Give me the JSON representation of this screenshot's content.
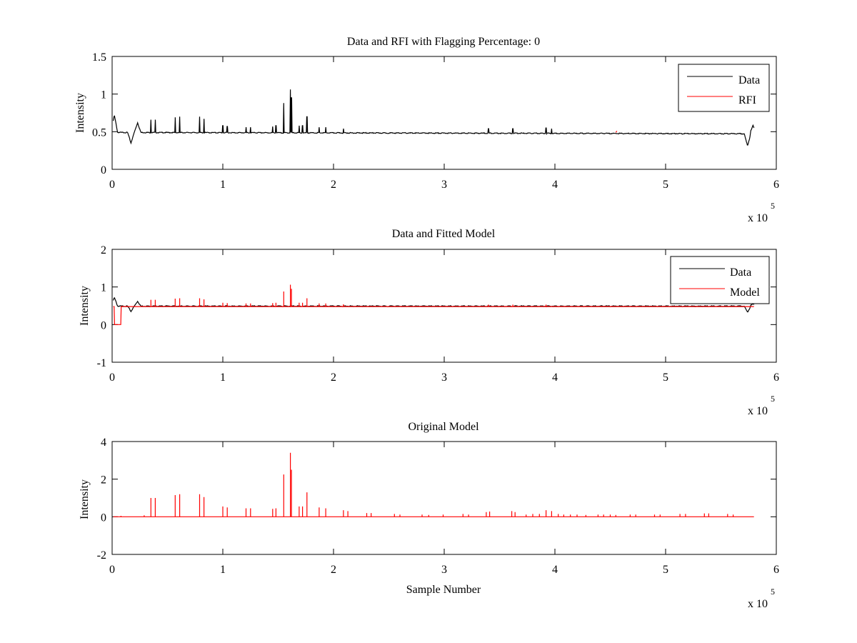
{
  "figure": {
    "background": "#ffffff",
    "axis_color": "#000000"
  },
  "chart_data": [
    {
      "type": "line",
      "title": "Data and RFI with Flagging Percentage: 0",
      "xlabel": "",
      "ylabel": "Intensity",
      "xlim": [
        0,
        6
      ],
      "ylim": [
        -0.0,
        1.5
      ],
      "xticks": [
        "0",
        "1",
        "2",
        "3",
        "4",
        "5",
        "6"
      ],
      "yticks": [
        "0",
        "0.5",
        "1",
        "1.5"
      ],
      "x_exponent_label": "x 10",
      "x_exponent": "5",
      "grid": false,
      "legend_position": "top-right",
      "series": [
        {
          "name": "Data",
          "color": "#000000",
          "baseline": 0.49,
          "x_end": 5.8,
          "features": [
            {
              "kind": "peak",
              "x": 0.02,
              "y": 0.72
            },
            {
              "kind": "dip",
              "x": 0.17,
              "y": 0.35
            },
            {
              "kind": "peak",
              "x": 0.23,
              "y": 0.62
            },
            {
              "kind": "spike",
              "x": 0.35,
              "y": 0.66
            },
            {
              "kind": "spike",
              "x": 0.39,
              "y": 0.66
            },
            {
              "kind": "spike",
              "x": 0.57,
              "y": 0.69
            },
            {
              "kind": "spike",
              "x": 0.61,
              "y": 0.7
            },
            {
              "kind": "spike",
              "x": 0.79,
              "y": 0.7
            },
            {
              "kind": "spike",
              "x": 0.83,
              "y": 0.67
            },
            {
              "kind": "spike",
              "x": 1.0,
              "y": 0.58
            },
            {
              "kind": "spike",
              "x": 1.04,
              "y": 0.57
            },
            {
              "kind": "spike",
              "x": 1.21,
              "y": 0.56
            },
            {
              "kind": "spike",
              "x": 1.25,
              "y": 0.56
            },
            {
              "kind": "spike",
              "x": 1.45,
              "y": 0.57
            },
            {
              "kind": "spike",
              "x": 1.48,
              "y": 0.58
            },
            {
              "kind": "spike",
              "x": 1.55,
              "y": 0.88
            },
            {
              "kind": "spike",
              "x": 1.61,
              "y": 1.06
            },
            {
              "kind": "spike",
              "x": 1.62,
              "y": 0.95
            },
            {
              "kind": "spike",
              "x": 1.69,
              "y": 0.58
            },
            {
              "kind": "spike",
              "x": 1.72,
              "y": 0.58
            },
            {
              "kind": "spike",
              "x": 1.76,
              "y": 0.7
            },
            {
              "kind": "spike",
              "x": 1.87,
              "y": 0.56
            },
            {
              "kind": "spike",
              "x": 1.93,
              "y": 0.56
            },
            {
              "kind": "spike",
              "x": 2.09,
              "y": 0.54
            },
            {
              "kind": "spike",
              "x": 3.4,
              "y": 0.54
            },
            {
              "kind": "spike",
              "x": 3.62,
              "y": 0.54
            },
            {
              "kind": "spike",
              "x": 3.92,
              "y": 0.55
            },
            {
              "kind": "spike",
              "x": 3.97,
              "y": 0.54
            },
            {
              "kind": "dip",
              "x": 5.74,
              "y": 0.33
            },
            {
              "kind": "peak",
              "x": 5.79,
              "y": 0.6
            }
          ]
        },
        {
          "name": "RFI",
          "color": "#ff0000",
          "points": [
            [
              4.55,
              0.49
            ],
            [
              4.56,
              0.51
            ]
          ]
        }
      ]
    },
    {
      "type": "line",
      "title": "Data and Fitted Model",
      "xlabel": "",
      "ylabel": "Intensity",
      "xlim": [
        0,
        6
      ],
      "ylim": [
        -1,
        2
      ],
      "xticks": [
        "0",
        "1",
        "2",
        "3",
        "4",
        "5",
        "6"
      ],
      "yticks": [
        "-1",
        "0",
        "1",
        "2"
      ],
      "x_exponent_label": "x 10",
      "x_exponent": "5",
      "grid": false,
      "legend_position": "top-right",
      "series": [
        {
          "name": "Data",
          "color": "#000000",
          "baseline": 0.49,
          "x_end": 5.8,
          "features": [
            {
              "kind": "peak",
              "x": 0.02,
              "y": 0.72
            },
            {
              "kind": "dip",
              "x": 0.17,
              "y": 0.35
            },
            {
              "kind": "peak",
              "x": 0.23,
              "y": 0.62
            },
            {
              "kind": "dip",
              "x": 5.74,
              "y": 0.33
            },
            {
              "kind": "peak",
              "x": 5.79,
              "y": 0.55
            }
          ]
        },
        {
          "name": "Model",
          "color": "#ff0000",
          "baseline": 0.48,
          "x_end": 5.8,
          "low_segment": {
            "x_start": 0.02,
            "x_end": 0.08,
            "y": 0.0
          },
          "spikes": [
            [
              0.35,
              0.66
            ],
            [
              0.39,
              0.66
            ],
            [
              0.57,
              0.69
            ],
            [
              0.61,
              0.7
            ],
            [
              0.79,
              0.7
            ],
            [
              0.83,
              0.67
            ],
            [
              1.0,
              0.58
            ],
            [
              1.04,
              0.57
            ],
            [
              1.21,
              0.56
            ],
            [
              1.25,
              0.56
            ],
            [
              1.45,
              0.57
            ],
            [
              1.48,
              0.58
            ],
            [
              1.55,
              0.88
            ],
            [
              1.61,
              1.06
            ],
            [
              1.62,
              0.95
            ],
            [
              1.69,
              0.58
            ],
            [
              1.72,
              0.58
            ],
            [
              1.76,
              0.7
            ],
            [
              1.87,
              0.56
            ],
            [
              1.93,
              0.56
            ],
            [
              2.09,
              0.54
            ],
            [
              3.4,
              0.53
            ],
            [
              3.62,
              0.53
            ],
            [
              3.92,
              0.53
            ]
          ]
        }
      ]
    },
    {
      "type": "line",
      "title": "Original Model",
      "xlabel": "Sample Number",
      "ylabel": "Intensity",
      "xlim": [
        0,
        6
      ],
      "ylim": [
        -2,
        4
      ],
      "xticks": [
        "0",
        "1",
        "2",
        "3",
        "4",
        "5",
        "6"
      ],
      "yticks": [
        "-2",
        "0",
        "2",
        "4"
      ],
      "x_exponent_label": "x 10",
      "x_exponent": "5",
      "grid": false,
      "series": [
        {
          "name": "",
          "color": "#ff0000",
          "baseline": 0.0,
          "x_end": 5.8,
          "spikes": [
            [
              0.08,
              0.05
            ],
            [
              0.29,
              0.08
            ],
            [
              0.35,
              1.0
            ],
            [
              0.39,
              1.0
            ],
            [
              0.57,
              1.15
            ],
            [
              0.61,
              1.2
            ],
            [
              0.79,
              1.2
            ],
            [
              0.83,
              1.05
            ],
            [
              1.0,
              0.55
            ],
            [
              1.04,
              0.5
            ],
            [
              1.21,
              0.45
            ],
            [
              1.25,
              0.45
            ],
            [
              1.45,
              0.42
            ],
            [
              1.48,
              0.45
            ],
            [
              1.55,
              2.25
            ],
            [
              1.61,
              3.4
            ],
            [
              1.62,
              2.5
            ],
            [
              1.69,
              0.55
            ],
            [
              1.72,
              0.55
            ],
            [
              1.76,
              1.3
            ],
            [
              1.87,
              0.5
            ],
            [
              1.93,
              0.45
            ],
            [
              2.09,
              0.35
            ],
            [
              2.13,
              0.3
            ],
            [
              2.3,
              0.2
            ],
            [
              2.34,
              0.2
            ],
            [
              2.55,
              0.15
            ],
            [
              2.6,
              0.12
            ],
            [
              2.8,
              0.12
            ],
            [
              2.86,
              0.1
            ],
            [
              2.99,
              0.12
            ],
            [
              3.17,
              0.15
            ],
            [
              3.22,
              0.12
            ],
            [
              3.38,
              0.25
            ],
            [
              3.41,
              0.28
            ],
            [
              3.61,
              0.3
            ],
            [
              3.64,
              0.25
            ],
            [
              3.74,
              0.12
            ],
            [
              3.8,
              0.15
            ],
            [
              3.86,
              0.15
            ],
            [
              3.92,
              0.35
            ],
            [
              3.97,
              0.3
            ],
            [
              4.03,
              0.15
            ],
            [
              4.08,
              0.12
            ],
            [
              4.14,
              0.12
            ],
            [
              4.2,
              0.12
            ],
            [
              4.28,
              0.1
            ],
            [
              4.39,
              0.12
            ],
            [
              4.44,
              0.12
            ],
            [
              4.5,
              0.12
            ],
            [
              4.55,
              0.1
            ],
            [
              4.68,
              0.12
            ],
            [
              4.73,
              0.12
            ],
            [
              4.9,
              0.12
            ],
            [
              4.95,
              0.12
            ],
            [
              5.13,
              0.15
            ],
            [
              5.18,
              0.15
            ],
            [
              5.35,
              0.18
            ],
            [
              5.39,
              0.18
            ],
            [
              5.56,
              0.15
            ],
            [
              5.61,
              0.12
            ]
          ]
        }
      ]
    }
  ]
}
